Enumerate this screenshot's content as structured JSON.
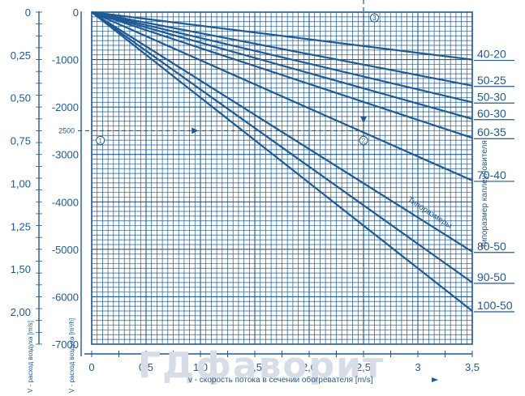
{
  "chart_data": {
    "type": "line",
    "xlabel": "v - скорость потока в сечении обогревателя [m/s]",
    "ylabel": "V - расход воздуха [m³/h]",
    "left_scale_label": "V - расход воздуха [m/s]",
    "xlim": [
      0,
      3.5
    ],
    "ylim": [
      -7000,
      0
    ],
    "x_ticks": [
      "0",
      "0,5",
      "1,0",
      "1,5",
      "2,0",
      "2,5",
      "3",
      "3,5"
    ],
    "y_ticks": [
      "0",
      "-1000",
      "-2000",
      "-3000",
      "-4000",
      "-5000",
      "-6000",
      "-7000"
    ],
    "left_ticks": [
      "0",
      "0,25",
      "0,50",
      "0,75",
      "1,00",
      "1,25",
      "1,50",
      "2,00"
    ],
    "legend_title": "Типоразмер каплеуловителя",
    "diagonal_label": "Типоразмеры",
    "series": [
      {
        "name": "40-20",
        "x": [
          0,
          3.5
        ],
        "y": [
          0,
          -1000
        ]
      },
      {
        "name": "50-25",
        "x": [
          0,
          3.5
        ],
        "y": [
          0,
          -1550
        ]
      },
      {
        "name": "50-30",
        "x": [
          0,
          3.5
        ],
        "y": [
          0,
          -1900
        ]
      },
      {
        "name": "60-30",
        "x": [
          0,
          3.5
        ],
        "y": [
          0,
          -2250
        ]
      },
      {
        "name": "60-35",
        "x": [
          0,
          3.5
        ],
        "y": [
          0,
          -2650
        ]
      },
      {
        "name": "70-40",
        "x": [
          0,
          3.5
        ],
        "y": [
          0,
          -3550
        ]
      },
      {
        "name": "80-50",
        "x": [
          0,
          3.5
        ],
        "y": [
          0,
          -5050
        ]
      },
      {
        "name": "90-50",
        "x": [
          0,
          3.5
        ],
        "y": [
          0,
          -5700
        ]
      },
      {
        "name": "100-50",
        "x": [
          0,
          3.5
        ],
        "y": [
          0,
          -6300
        ]
      }
    ],
    "example": {
      "flow_label": "2500",
      "flow": -2500,
      "velocity": 2.5,
      "markers": [
        "1",
        "2",
        "3"
      ]
    },
    "watermark": "ГДфаворит"
  }
}
